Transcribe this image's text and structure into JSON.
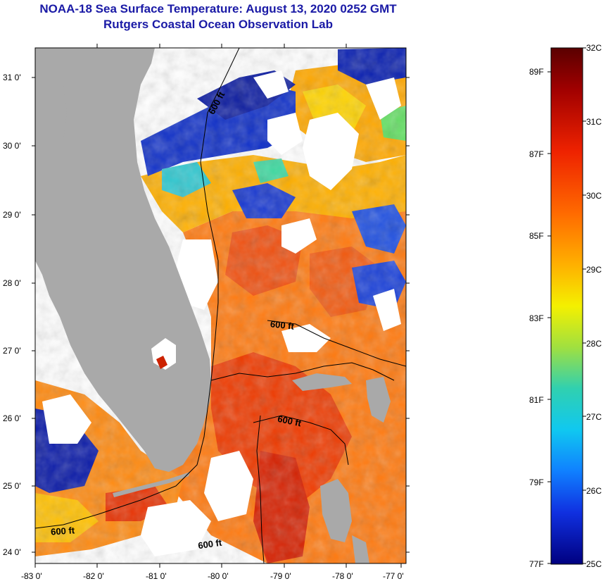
{
  "title": "NOAA-18 Sea Surface Temperature:  August 13, 2020 0252 GMT",
  "subtitle": "Rutgers Coastal Ocean Observation Lab",
  "map": {
    "lat_ticks": [
      "31 0'",
      "30 0'",
      "29 0'",
      "28 0'",
      "27 0'",
      "26 0'",
      "25 0'",
      "24 0'"
    ],
    "lon_ticks": [
      "-83 0'",
      "-82 0'",
      "-81 0'",
      "-80 0'",
      "-79 0'",
      "-78 0'",
      "-77 0'"
    ],
    "lat_range": [
      23.85,
      31.45
    ],
    "lon_range": [
      -83.0,
      -77.1
    ],
    "contour_label": "600 ft",
    "colors": {
      "land": "#a9a9a9",
      "no_data": "#ffffff"
    }
  },
  "colorbar": {
    "celsius_labels": [
      "32C",
      "31C",
      "30C",
      "29C",
      "28C",
      "27C",
      "26C",
      "25C"
    ],
    "fahrenheit_labels": [
      "89F",
      "87F",
      "85F",
      "83F",
      "81F",
      "79F",
      "77F"
    ],
    "range_c": [
      25,
      32
    ]
  }
}
